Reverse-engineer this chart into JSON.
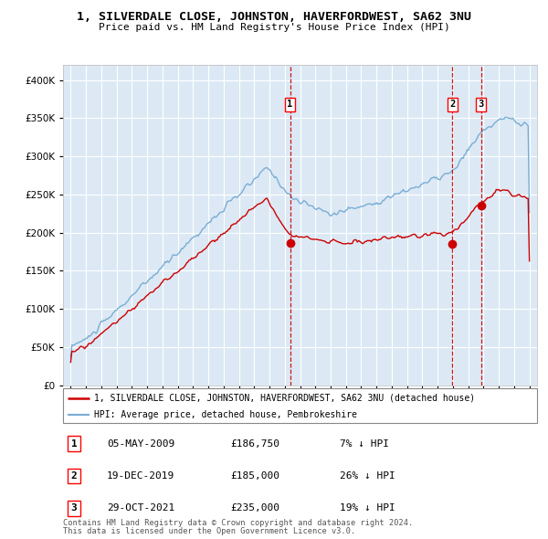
{
  "title": "1, SILVERDALE CLOSE, JOHNSTON, HAVERFORDWEST, SA62 3NU",
  "subtitle": "Price paid vs. HM Land Registry's House Price Index (HPI)",
  "background_color": "#ffffff",
  "plot_bg_color": "#dce9f5",
  "sale_color": "#cc0000",
  "hpi_color": "#7aadd4",
  "yticks": [
    0,
    50000,
    100000,
    150000,
    200000,
    250000,
    300000,
    350000,
    400000
  ],
  "sales": [
    {
      "date_num": 2009.35,
      "price": 186750,
      "label": "1",
      "date_str": "05-MAY-2009",
      "pct": "7% ↓ HPI"
    },
    {
      "date_num": 2019.97,
      "price": 185000,
      "label": "2",
      "date_str": "19-DEC-2019",
      "pct": "26% ↓ HPI"
    },
    {
      "date_num": 2021.83,
      "price": 235000,
      "label": "3",
      "date_str": "29-OCT-2021",
      "pct": "19% ↓ HPI"
    }
  ],
  "legend_sale_label": "1, SILVERDALE CLOSE, JOHNSTON, HAVERFORDWEST, SA62 3NU (detached house)",
  "legend_hpi_label": "HPI: Average price, detached house, Pembrokeshire",
  "footer1": "Contains HM Land Registry data © Crown copyright and database right 2024.",
  "footer2": "This data is licensed under the Open Government Licence v3.0.",
  "xlim": [
    1994.5,
    2025.5
  ],
  "ylim": [
    0,
    420000
  ]
}
